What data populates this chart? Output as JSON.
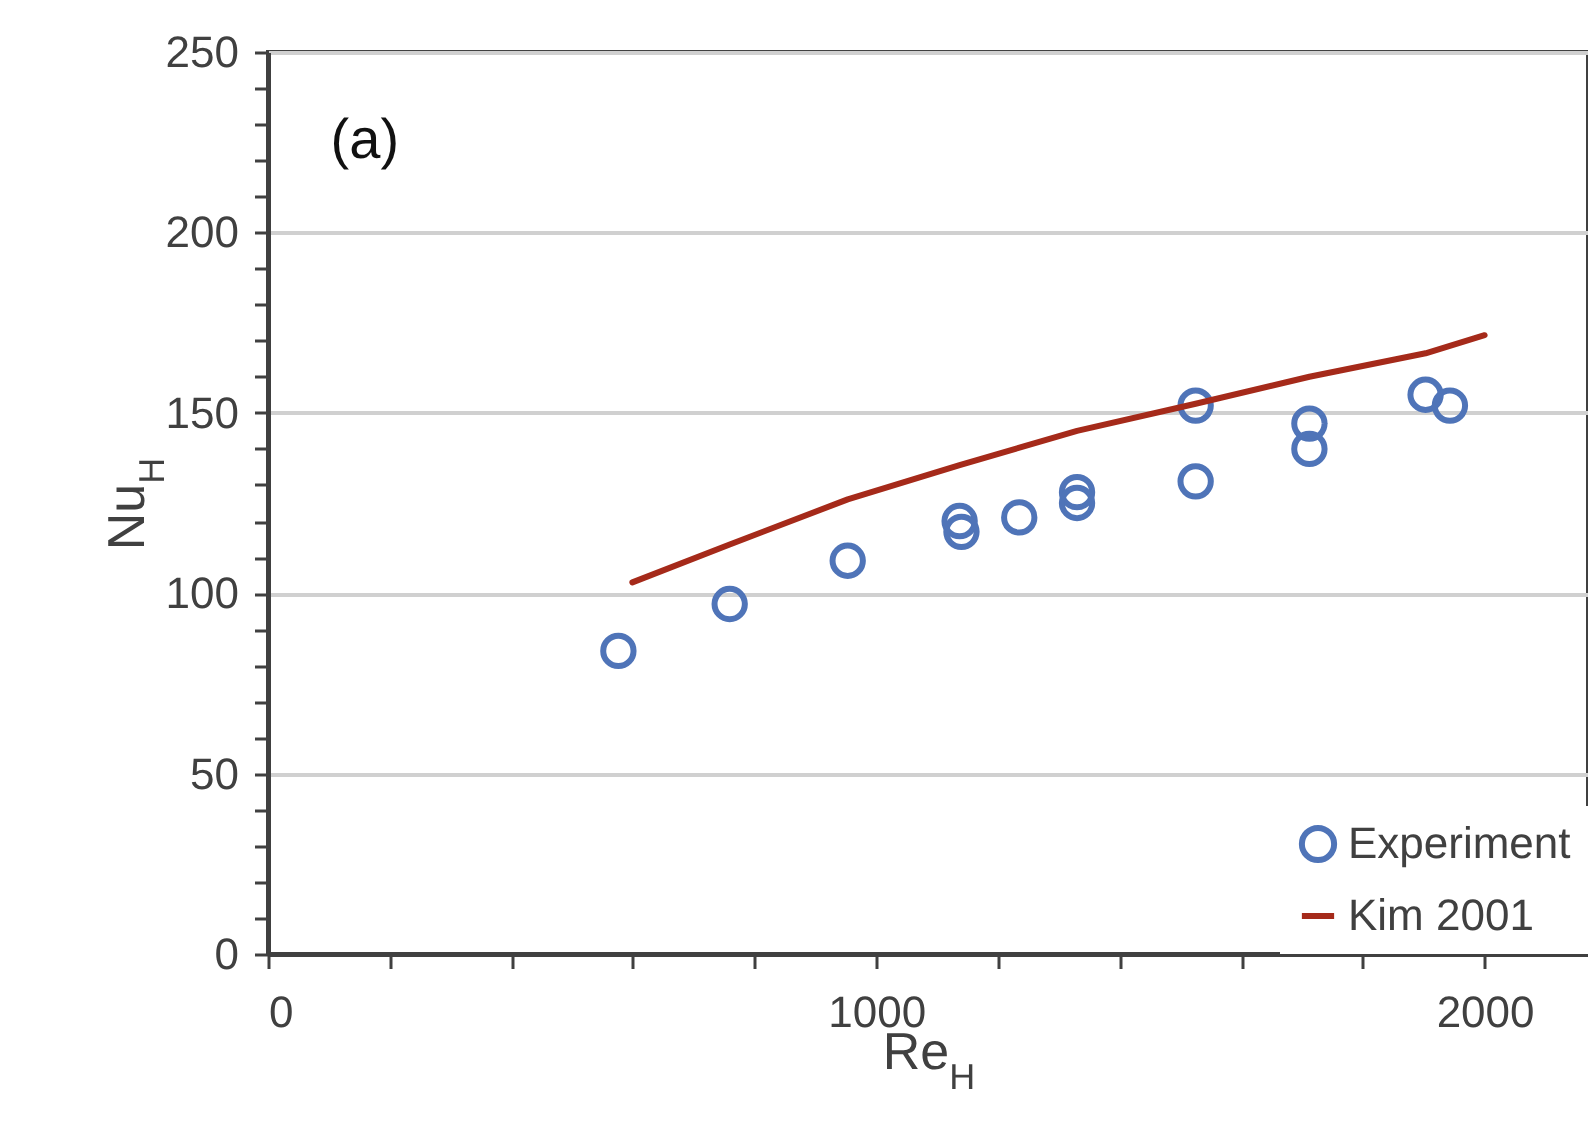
{
  "chart_data": {
    "type": "scatter",
    "xlabel": "Re$_{H}$",
    "ylabel": "Nu$_{H}$",
    "annotations": [
      "(a)"
    ],
    "xlim": [
      0,
      2170
    ],
    "ylim": [
      0,
      250
    ],
    "xticks": [
      0,
      {
        "value": 200,
        "label": null
      },
      {
        "value": 400,
        "label": null
      },
      {
        "value": 600,
        "label": null
      },
      {
        "value": 800,
        "label": null
      },
      1000,
      {
        "value": 1200,
        "label": null
      },
      {
        "value": 1400,
        "label": null
      },
      {
        "value": 1600,
        "label": null
      },
      {
        "value": 1800,
        "label": null
      },
      2000
    ],
    "yticks": [
      0,
      {
        "value": 10,
        "label": null
      },
      {
        "value": 20,
        "label": null
      },
      {
        "value": 30,
        "label": null
      },
      {
        "value": 40,
        "label": null
      },
      50,
      {
        "value": 60,
        "label": null
      },
      {
        "value": 70,
        "label": null
      },
      {
        "value": 80,
        "label": null
      },
      {
        "value": 90,
        "label": null
      },
      100,
      {
        "value": 110,
        "label": null
      },
      {
        "value": 120,
        "label": null
      },
      {
        "value": 130,
        "label": null
      },
      {
        "value": 140,
        "label": null
      },
      150,
      {
        "value": 160,
        "label": null
      },
      {
        "value": 170,
        "label": null
      },
      {
        "value": 180,
        "label": null
      },
      {
        "value": 190,
        "label": null
      },
      200,
      {
        "value": 210,
        "label": null
      },
      {
        "value": 220,
        "label": null
      },
      {
        "value": 230,
        "label": null
      },
      {
        "value": 240,
        "label": null
      },
      250
    ],
    "grid": "y",
    "legend": "bottom right",
    "marker": "circle",
    "series": [
      {
        "name": "Experiment",
        "color": "#4f74b8",
        "x": [
          576,
          759,
          953,
          1137,
          1140,
          1235,
          1330,
          1330,
          1525,
          1525,
          1712,
          1712,
          1903,
          1943
        ],
        "values": [
          84,
          97,
          109,
          120,
          117,
          121,
          128,
          125,
          152,
          131,
          147,
          140,
          155,
          152
        ]
      },
      {
        "name": "Kim 2001",
        "type": "line",
        "color": "#a52a1a",
        "marker": "none",
        "x": [
          599,
          759,
          953,
          1137,
          1330,
          1525,
          1712,
          1903,
          2000
        ],
        "values": [
          103,
          113.5,
          126,
          135.5,
          145,
          152.5,
          160,
          166.5,
          171.5
        ]
      }
    ]
  }
}
